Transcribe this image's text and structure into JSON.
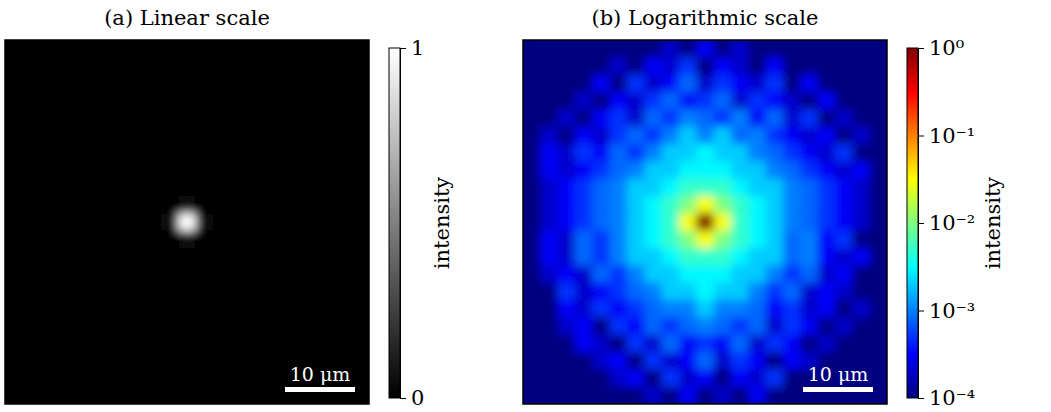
{
  "chart_data": [
    {
      "type": "heatmap",
      "title": "(a) Linear scale",
      "color": "gray",
      "xlim": [
        -26,
        26
      ],
      "ylim": [
        -26,
        26
      ],
      "tick_labels": false,
      "colorbar": {
        "range": [
          0,
          1
        ],
        "ticks": [
          0,
          1
        ],
        "label": "intensity"
      },
      "scale_bar": {
        "value": 10,
        "label": "10 μm"
      },
      "cells": [
        [
          0.0001,
          0.0001,
          0.0001,
          0.0001,
          0.0001,
          0.0001,
          0.0001,
          0.0001,
          0.0002,
          0.0001,
          0.0003,
          0.0001,
          0.0002,
          0.0001,
          0.0001,
          0.0001,
          0.0001,
          0.0001,
          0.0001,
          0.0001,
          0.0001
        ],
        [
          0.0001,
          0.0001,
          0.0001,
          0.0001,
          0.0001,
          0.0002,
          0.0001,
          0.0003,
          0.0002,
          0.0005,
          0.0001,
          0.0003,
          0.0002,
          0.0001,
          0.0003,
          0.0001,
          0.0001,
          0.0001,
          0.0001,
          0.0001,
          0.0001
        ],
        [
          0.0001,
          0.0001,
          0.0001,
          0.0001,
          0.0003,
          0.0001,
          0.0005,
          0.0002,
          0.0003,
          0.0008,
          0.0002,
          0.0005,
          0.0003,
          0.0002,
          0.0005,
          0.0001,
          0.0003,
          0.0001,
          0.0001,
          0.0001,
          0.0001
        ],
        [
          0.0001,
          0.0001,
          0.0001,
          0.0002,
          0.0001,
          0.0003,
          0.0002,
          0.0005,
          0.0008,
          0.0003,
          0.0005,
          0.0008,
          0.0002,
          0.0005,
          0.0003,
          0.0002,
          0.0001,
          0.0003,
          0.0001,
          0.0001,
          0.0001
        ],
        [
          0.0001,
          0.0001,
          0.0002,
          0.0001,
          0.0003,
          0.0005,
          0.0002,
          0.0008,
          0.0005,
          0.001,
          0.0008,
          0.0005,
          0.001,
          0.0003,
          0.0008,
          0.0002,
          0.0005,
          0.0001,
          0.0002,
          0.0001,
          0.0001
        ],
        [
          0.0001,
          0.0002,
          0.0001,
          0.0003,
          0.0002,
          0.0005,
          0.0008,
          0.0005,
          0.001,
          0.002,
          0.001,
          0.002,
          0.0008,
          0.001,
          0.0005,
          0.0003,
          0.0002,
          0.0003,
          0.0001,
          0.0002,
          0.0001
        ],
        [
          0.0001,
          0.0003,
          0.0002,
          0.0005,
          0.0003,
          0.0008,
          0.0005,
          0.001,
          0.002,
          0.002,
          0.003,
          0.002,
          0.002,
          0.001,
          0.0008,
          0.0005,
          0.0003,
          0.0002,
          0.0005,
          0.0001,
          0.0001
        ],
        [
          0.0001,
          0.0003,
          0.0002,
          0.0003,
          0.0005,
          0.0008,
          0.001,
          0.002,
          0.002,
          0.003,
          0.003,
          0.003,
          0.002,
          0.002,
          0.001,
          0.0008,
          0.0005,
          0.0003,
          0.0002,
          0.0003,
          0.0001
        ],
        [
          0.0001,
          0.0002,
          0.0003,
          0.0005,
          0.0008,
          0.001,
          0.002,
          0.002,
          0.003,
          0.005,
          0.005,
          0.005,
          0.003,
          0.002,
          0.002,
          0.001,
          0.0008,
          0.0005,
          0.0003,
          0.0002,
          0.0001
        ],
        [
          0.0001,
          0.0002,
          0.0003,
          0.0005,
          0.0008,
          0.001,
          0.002,
          0.003,
          0.005,
          0.01,
          0.03,
          0.01,
          0.005,
          0.003,
          0.002,
          0.001,
          0.0008,
          0.0005,
          0.0003,
          0.0002,
          0.0001
        ],
        [
          0.0001,
          0.0002,
          0.0003,
          0.0005,
          0.0008,
          0.001,
          0.002,
          0.003,
          0.005,
          0.03,
          1,
          0.03,
          0.005,
          0.003,
          0.002,
          0.001,
          0.0008,
          0.0005,
          0.0003,
          0.0002,
          0.0001
        ],
        [
          0.0001,
          0.0003,
          0.0002,
          0.0008,
          0.0005,
          0.001,
          0.002,
          0.003,
          0.005,
          0.01,
          0.03,
          0.01,
          0.005,
          0.003,
          0.002,
          0.0008,
          0.001,
          0.0003,
          0.0005,
          0.0001,
          0.0001
        ],
        [
          0.0001,
          0.0003,
          0.0002,
          0.0008,
          0.0005,
          0.001,
          0.002,
          0.002,
          0.003,
          0.005,
          0.005,
          0.005,
          0.003,
          0.002,
          0.002,
          0.0008,
          0.001,
          0.0003,
          0.0002,
          0.0003,
          0.0001
        ],
        [
          0.0001,
          0.0002,
          0.0003,
          0.0002,
          0.0008,
          0.0005,
          0.001,
          0.002,
          0.002,
          0.003,
          0.003,
          0.003,
          0.002,
          0.002,
          0.001,
          0.0005,
          0.0008,
          0.0002,
          0.0003,
          0.0001,
          0.0001
        ],
        [
          0.0001,
          0.0001,
          0.0005,
          0.0002,
          0.0003,
          0.0005,
          0.0008,
          0.001,
          0.002,
          0.002,
          0.003,
          0.002,
          0.002,
          0.001,
          0.0005,
          0.0008,
          0.0002,
          0.0003,
          0.0002,
          0.0001,
          0.0001
        ],
        [
          0.0001,
          0.0001,
          0.0003,
          0.0002,
          0.0005,
          0.0003,
          0.0005,
          0.0008,
          0.001,
          0.001,
          0.002,
          0.001,
          0.001,
          0.0008,
          0.0003,
          0.0005,
          0.0002,
          0.0003,
          0.0001,
          0.0002,
          0.0001
        ],
        [
          0.0001,
          0.0001,
          0.0002,
          0.0003,
          0.0001,
          0.0005,
          0.0003,
          0.0008,
          0.0005,
          0.0008,
          0.001,
          0.0008,
          0.0005,
          0.0008,
          0.0002,
          0.0005,
          0.0003,
          0.0001,
          0.0002,
          0.0001,
          0.0001
        ],
        [
          0.0001,
          0.0001,
          0.0001,
          0.0003,
          0.0002,
          0.0001,
          0.0005,
          0.0002,
          0.0008,
          0.0003,
          0.0005,
          0.0003,
          0.0008,
          0.0002,
          0.0005,
          0.0003,
          0.0001,
          0.0002,
          0.0001,
          0.0001,
          0.0001
        ],
        [
          0.0001,
          0.0001,
          0.0001,
          0.0001,
          0.0002,
          0.0003,
          0.0001,
          0.0005,
          0.0002,
          0.0003,
          0.0008,
          0.0002,
          0.0005,
          0.0003,
          0.0001,
          0.0003,
          0.0002,
          0.0001,
          0.0001,
          0.0001,
          0.0001
        ],
        [
          0.0001,
          0.0001,
          0.0001,
          0.0001,
          0.0001,
          0.0002,
          0.0003,
          0.0001,
          0.0005,
          0.0002,
          0.0003,
          0.0001,
          0.0003,
          0.0002,
          0.0005,
          0.0001,
          0.0001,
          0.0001,
          0.0001,
          0.0001,
          0.0001
        ],
        [
          0.0001,
          0.0001,
          0.0001,
          0.0001,
          0.0001,
          0.0001,
          0.0001,
          0.0002,
          0.0001,
          0.0003,
          0.0001,
          0.0002,
          0.0001,
          0.0003,
          0.0001,
          0.0001,
          0.0001,
          0.0001,
          0.0001,
          0.0001,
          0.0001
        ]
      ]
    },
    {
      "type": "heatmap",
      "title": "(b) Logarithmic scale",
      "color": "jet",
      "log": true,
      "xlim": [
        -26,
        26
      ],
      "ylim": [
        -26,
        26
      ],
      "tick_labels": false,
      "colorbar": {
        "range": [
          0.0001,
          1
        ],
        "ticks": [
          {
            "value": 0.0001,
            "label": "10⁻⁴"
          },
          {
            "value": 0.001,
            "label": "10⁻³"
          },
          {
            "value": 0.01,
            "label": "10⁻²"
          },
          {
            "value": 0.1,
            "label": "10⁻¹"
          },
          {
            "value": 1,
            "label": "10⁰"
          }
        ],
        "label": "intensity"
      },
      "scale_bar": {
        "value": 10,
        "label": "10 μm"
      },
      "cells": [
        [
          0.0001,
          0.0001,
          0.0001,
          0.0001,
          0.0001,
          0.0001,
          0.0001,
          0.0001,
          0.0002,
          0.0001,
          0.0003,
          0.0001,
          0.0002,
          0.0001,
          0.0001,
          0.0001,
          0.0001,
          0.0001,
          0.0001,
          0.0001,
          0.0001
        ],
        [
          0.0001,
          0.0001,
          0.0001,
          0.0001,
          0.0001,
          0.0002,
          0.0001,
          0.0003,
          0.0002,
          0.0005,
          0.0001,
          0.0003,
          0.0002,
          0.0001,
          0.0003,
          0.0001,
          0.0001,
          0.0001,
          0.0001,
          0.0001,
          0.0001
        ],
        [
          0.0001,
          0.0001,
          0.0001,
          0.0001,
          0.0003,
          0.0001,
          0.0005,
          0.0002,
          0.0003,
          0.0008,
          0.0002,
          0.0005,
          0.0003,
          0.0002,
          0.0005,
          0.0001,
          0.0003,
          0.0001,
          0.0001,
          0.0001,
          0.0001
        ],
        [
          0.0001,
          0.0001,
          0.0001,
          0.0002,
          0.0001,
          0.0003,
          0.0002,
          0.0005,
          0.0008,
          0.0003,
          0.0005,
          0.0008,
          0.0002,
          0.0005,
          0.0003,
          0.0002,
          0.0001,
          0.0003,
          0.0001,
          0.0001,
          0.0001
        ],
        [
          0.0001,
          0.0001,
          0.0002,
          0.0001,
          0.0003,
          0.0005,
          0.0002,
          0.0008,
          0.0005,
          0.001,
          0.0008,
          0.0005,
          0.001,
          0.0003,
          0.0008,
          0.0002,
          0.0005,
          0.0001,
          0.0002,
          0.0001,
          0.0001
        ],
        [
          0.0001,
          0.0002,
          0.0001,
          0.0003,
          0.0002,
          0.0005,
          0.0008,
          0.0005,
          0.001,
          0.002,
          0.001,
          0.002,
          0.0008,
          0.001,
          0.0005,
          0.0003,
          0.0002,
          0.0003,
          0.0001,
          0.0002,
          0.0001
        ],
        [
          0.0001,
          0.0003,
          0.0002,
          0.0005,
          0.0003,
          0.0008,
          0.0005,
          0.001,
          0.002,
          0.002,
          0.003,
          0.002,
          0.002,
          0.001,
          0.0008,
          0.0005,
          0.0003,
          0.0002,
          0.0005,
          0.0001,
          0.0001
        ],
        [
          0.0001,
          0.0003,
          0.0002,
          0.0003,
          0.0005,
          0.0008,
          0.001,
          0.002,
          0.002,
          0.003,
          0.003,
          0.003,
          0.002,
          0.002,
          0.001,
          0.0008,
          0.0005,
          0.0003,
          0.0002,
          0.0003,
          0.0001
        ],
        [
          0.0001,
          0.0002,
          0.0003,
          0.0005,
          0.0008,
          0.001,
          0.002,
          0.002,
          0.003,
          0.005,
          0.005,
          0.005,
          0.003,
          0.002,
          0.002,
          0.001,
          0.0008,
          0.0005,
          0.0003,
          0.0002,
          0.0001
        ],
        [
          0.0001,
          0.0002,
          0.0003,
          0.0005,
          0.0008,
          0.001,
          0.002,
          0.003,
          0.005,
          0.01,
          0.03,
          0.01,
          0.005,
          0.003,
          0.002,
          0.001,
          0.0008,
          0.0005,
          0.0003,
          0.0002,
          0.0001
        ],
        [
          0.0001,
          0.0002,
          0.0003,
          0.0005,
          0.0008,
          0.001,
          0.002,
          0.003,
          0.005,
          0.03,
          1,
          0.03,
          0.005,
          0.003,
          0.002,
          0.001,
          0.0008,
          0.0005,
          0.0003,
          0.0002,
          0.0001
        ],
        [
          0.0001,
          0.0003,
          0.0002,
          0.0008,
          0.0005,
          0.001,
          0.002,
          0.003,
          0.005,
          0.01,
          0.03,
          0.01,
          0.005,
          0.003,
          0.002,
          0.0008,
          0.001,
          0.0003,
          0.0005,
          0.0001,
          0.0001
        ],
        [
          0.0001,
          0.0003,
          0.0002,
          0.0008,
          0.0005,
          0.001,
          0.002,
          0.002,
          0.003,
          0.005,
          0.005,
          0.005,
          0.003,
          0.002,
          0.002,
          0.0008,
          0.001,
          0.0003,
          0.0002,
          0.0003,
          0.0001
        ],
        [
          0.0001,
          0.0002,
          0.0003,
          0.0002,
          0.0008,
          0.0005,
          0.001,
          0.002,
          0.002,
          0.003,
          0.003,
          0.003,
          0.002,
          0.002,
          0.001,
          0.0005,
          0.0008,
          0.0002,
          0.0003,
          0.0001,
          0.0001
        ],
        [
          0.0001,
          0.0001,
          0.0005,
          0.0002,
          0.0003,
          0.0005,
          0.0008,
          0.001,
          0.002,
          0.002,
          0.003,
          0.002,
          0.002,
          0.001,
          0.0005,
          0.0008,
          0.0002,
          0.0003,
          0.0002,
          0.0001,
          0.0001
        ],
        [
          0.0001,
          0.0001,
          0.0003,
          0.0002,
          0.0005,
          0.0003,
          0.0005,
          0.0008,
          0.001,
          0.001,
          0.002,
          0.001,
          0.001,
          0.0008,
          0.0003,
          0.0005,
          0.0002,
          0.0003,
          0.0001,
          0.0002,
          0.0001
        ],
        [
          0.0001,
          0.0001,
          0.0002,
          0.0003,
          0.0001,
          0.0005,
          0.0003,
          0.0008,
          0.0005,
          0.0008,
          0.001,
          0.0008,
          0.0005,
          0.0008,
          0.0002,
          0.0005,
          0.0003,
          0.0001,
          0.0002,
          0.0001,
          0.0001
        ],
        [
          0.0001,
          0.0001,
          0.0001,
          0.0003,
          0.0002,
          0.0001,
          0.0005,
          0.0002,
          0.0008,
          0.0003,
          0.0005,
          0.0003,
          0.0008,
          0.0002,
          0.0005,
          0.0003,
          0.0001,
          0.0002,
          0.0001,
          0.0001,
          0.0001
        ],
        [
          0.0001,
          0.0001,
          0.0001,
          0.0001,
          0.0002,
          0.0003,
          0.0001,
          0.0005,
          0.0002,
          0.0003,
          0.0008,
          0.0002,
          0.0005,
          0.0003,
          0.0001,
          0.0003,
          0.0002,
          0.0001,
          0.0001,
          0.0001,
          0.0001
        ],
        [
          0.0001,
          0.0001,
          0.0001,
          0.0001,
          0.0001,
          0.0002,
          0.0003,
          0.0001,
          0.0005,
          0.0002,
          0.0003,
          0.0001,
          0.0003,
          0.0002,
          0.0005,
          0.0001,
          0.0001,
          0.0001,
          0.0001,
          0.0001,
          0.0001
        ],
        [
          0.0001,
          0.0001,
          0.0001,
          0.0001,
          0.0001,
          0.0001,
          0.0001,
          0.0002,
          0.0001,
          0.0003,
          0.0001,
          0.0002,
          0.0001,
          0.0003,
          0.0001,
          0.0001,
          0.0001,
          0.0001,
          0.0001,
          0.0001,
          0.0001
        ]
      ]
    }
  ]
}
